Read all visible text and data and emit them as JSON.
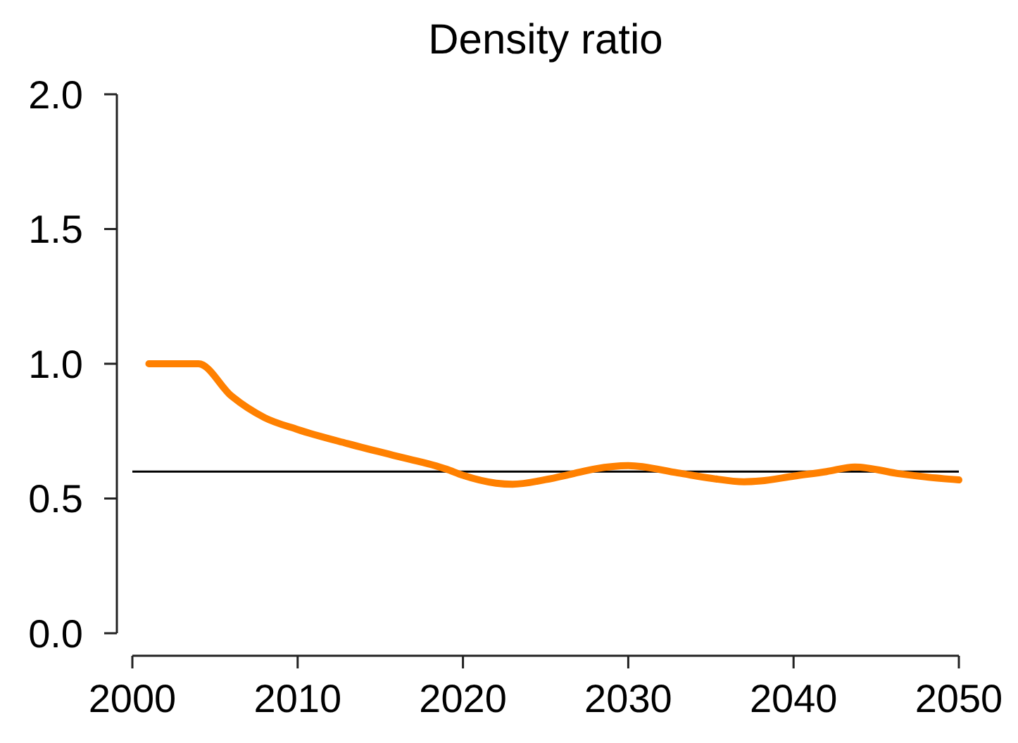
{
  "chart_data": {
    "type": "line",
    "title": "Density ratio",
    "x": [
      2001,
      2004,
      2006,
      2008,
      2010,
      2013,
      2016,
      2019,
      2020,
      2022,
      2023,
      2025,
      2026.6,
      2028,
      2030,
      2033,
      2035,
      2037,
      2038,
      2040,
      2042,
      2043.7,
      2046.5,
      2048,
      2050
    ],
    "series": [
      {
        "color": "#ff8000",
        "values": [
          1.0,
          1.0,
          0.88,
          0.8,
          0.756,
          0.704,
          0.657,
          0.609,
          0.586,
          0.557,
          0.553,
          0.57,
          0.591,
          0.61,
          0.622,
          0.595,
          0.575,
          0.562,
          0.565,
          0.583,
          0.6,
          0.617,
          0.591,
          0.58,
          0.569
        ]
      }
    ],
    "xlim": [
      2000,
      2050
    ],
    "xticks": [
      2000,
      2010,
      2020,
      2030,
      2040,
      2050
    ],
    "ylim": [
      0,
      2
    ],
    "yticks": [
      {
        "value": 0,
        "label": "0.0"
      },
      {
        "value": 0.5,
        "label": "0.5"
      },
      {
        "value": 1,
        "label": "1.0"
      },
      {
        "value": 1.5,
        "label": "1.5"
      },
      {
        "value": 2,
        "label": "2.0"
      }
    ],
    "ref_lines": [
      {
        "axis": "y",
        "value": 0.6,
        "color": "#000000"
      }
    ],
    "grid": false
  }
}
